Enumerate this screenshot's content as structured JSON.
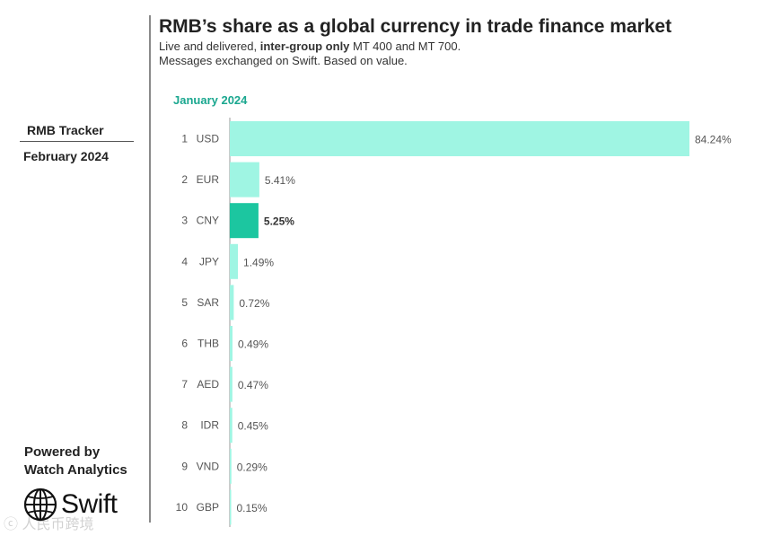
{
  "header": {
    "title": "RMB’s share as a global currency in trade finance market",
    "subtitle_prefix": "Live and delivered, ",
    "subtitle_bold": "inter-group only",
    "subtitle_suffix": " MT 400 and MT 700.",
    "subtitle_line2": "Messages exchanged on Swift. Based on value."
  },
  "sidebar": {
    "tracker_title": "RMB Tracker",
    "tracker_date": "February 2024",
    "powered_line1": "Powered by",
    "powered_line2": "Watch Analytics",
    "logo_text": "Swift",
    "logo_icon": "globe-icon"
  },
  "watermark": "ⓒ 人民币跨境",
  "colors": {
    "bar": "#9ff5e3",
    "highlight": "#1cc6a0",
    "divider": "#8a8a8a",
    "period": "#1aa78f"
  },
  "chart_data": {
    "type": "bar",
    "orientation": "horizontal",
    "period_label": "January 2024",
    "ranks": [
      "1",
      "2",
      "3",
      "4",
      "5",
      "6",
      "7",
      "8",
      "9",
      "10"
    ],
    "categories": [
      "USD",
      "EUR",
      "CNY",
      "JPY",
      "SAR",
      "THB",
      "AED",
      "IDR",
      "VND",
      "GBP"
    ],
    "values": [
      84.24,
      5.41,
      5.25,
      1.49,
      0.72,
      0.49,
      0.47,
      0.45,
      0.29,
      0.15
    ],
    "value_labels": [
      "84.24%",
      "5.41%",
      "5.25%",
      "1.49%",
      "0.72%",
      "0.49%",
      "0.47%",
      "0.45%",
      "0.29%",
      "0.15%"
    ],
    "highlight": "CNY",
    "xlim": [
      0,
      84.24
    ]
  }
}
